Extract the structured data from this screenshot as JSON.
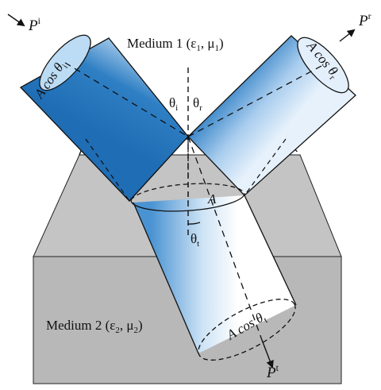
{
  "incident_power": {
    "base": "P",
    "sup": "i"
  },
  "reflected_power": {
    "base": "P",
    "sup": "r"
  },
  "transmitted_power": {
    "base": "P",
    "sup": "t"
  },
  "medium1": {
    "prefix": "Medium 1 (",
    "eps": "ε",
    "eps_sub": "1",
    "sep": ", ",
    "mu": "μ",
    "mu_sub": "1",
    "suffix": ")"
  },
  "medium2": {
    "prefix": "Medium 2 (",
    "eps": "ε",
    "eps_sub": "2",
    "sep": ", ",
    "mu": "μ",
    "mu_sub": "2",
    "suffix": ")"
  },
  "incident_area": {
    "main": "A cos θ",
    "sub": "i"
  },
  "reflected_area": {
    "main": "A cos θ",
    "sub": "r"
  },
  "transmitted_area": {
    "main": "A cos θ",
    "sub": "t"
  },
  "interface_area": "A",
  "angle_i": {
    "main": "θ",
    "sub": "i"
  },
  "angle_r": {
    "main": "θ",
    "sub": "r"
  },
  "angle_t": {
    "main": "θ",
    "sub": "t"
  },
  "colors": {
    "beam_dark": "#2f7fc4",
    "beam_light": "#e8f2fb",
    "block_side": "#c4c4c4",
    "block_front": "#b6b6b6",
    "line": "#111111"
  }
}
